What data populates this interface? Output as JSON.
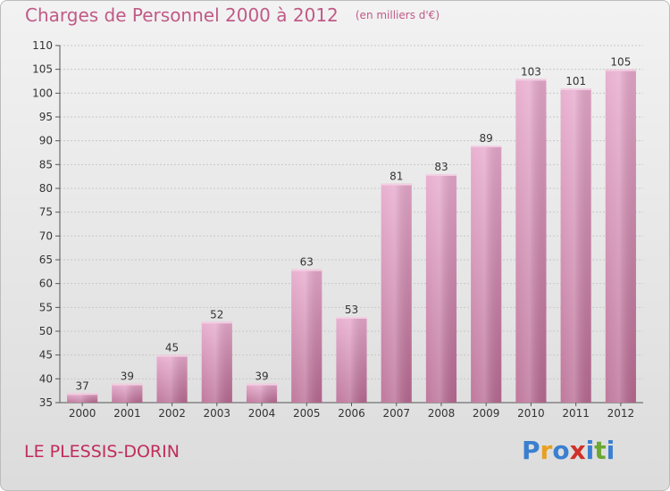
{
  "header": {
    "title": "Charges de Personnel 2000 à 2012",
    "unit": "(en milliers d'€)"
  },
  "footer": {
    "commune": "LE PLESSIS-DORIN",
    "brand": "Proxiti"
  },
  "colors": {
    "title": "#c05a86",
    "commune": "#c02c5c",
    "bar_top": "#e6a8cb",
    "bar_bottom": "#b86a92",
    "brand_letters": [
      "#3a7fd0",
      "#e8a020",
      "#3a7fd0",
      "#d0302a",
      "#3a7fd0",
      "#6aa830",
      "#3a7fd0"
    ]
  },
  "chart_data": {
    "type": "bar",
    "categories": [
      "2000",
      "2001",
      "2002",
      "2003",
      "2004",
      "2005",
      "2006",
      "2007",
      "2008",
      "2009",
      "2010",
      "2011",
      "2012"
    ],
    "values": [
      37,
      39,
      45,
      52,
      39,
      63,
      53,
      81,
      83,
      89,
      103,
      101,
      105
    ],
    "title": "Charges de Personnel 2000 à 2012",
    "xlabel": "",
    "ylabel": "",
    "ylim": [
      35,
      110
    ],
    "yticks": [
      35,
      40,
      45,
      50,
      55,
      60,
      65,
      70,
      75,
      80,
      85,
      90,
      95,
      100,
      105,
      110
    ],
    "grid": true,
    "data_labels": true
  }
}
